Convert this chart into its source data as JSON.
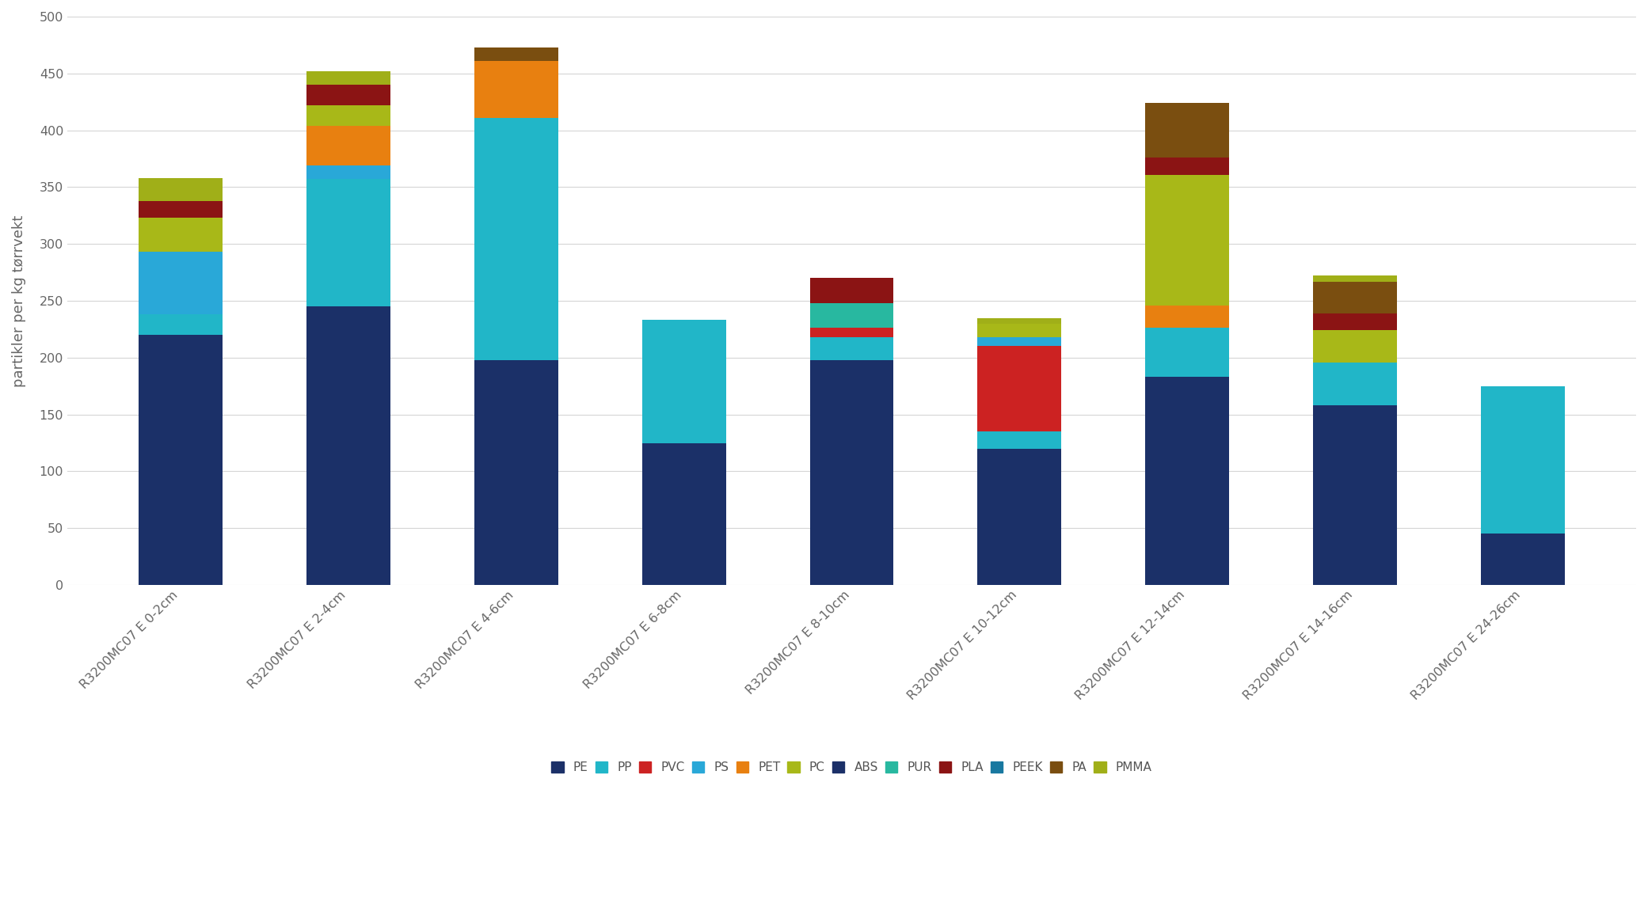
{
  "categories": [
    "R3200MC07 E 0-2cm",
    "R3200MC07 E 2-4cm",
    "R3200MC07 E 4-6cm",
    "R3200MC07 E 6-8cm",
    "R3200MC07 E 8-10cm",
    "R3200MC07 E 10-12cm",
    "R3200MC07 E 12-14cm",
    "R3200MC07 E 14-16cm",
    "R3200MC07 E 24-26cm"
  ],
  "materials": [
    "PE",
    "PP",
    "PVC",
    "PS",
    "PET",
    "PC",
    "ABS",
    "PUR",
    "PLA",
    "PEEK",
    "PA",
    "PMMA"
  ],
  "color_map": {
    "PE": "#1b3068",
    "PP": "#21b6c8",
    "PVC": "#cc2222",
    "PS": "#29a8d8",
    "PET": "#e88010",
    "PC": "#a8b818",
    "ABS": "#1b3068",
    "PUR": "#28b8a0",
    "PLA": "#8b1414",
    "PEEK": "#1878a0",
    "PA": "#7a4e10",
    "PMMA": "#a0af18"
  },
  "values": {
    "PE": [
      220,
      245,
      198,
      125,
      198,
      120,
      183,
      158,
      45
    ],
    "PP": [
      18,
      112,
      213,
      108,
      20,
      15,
      43,
      38,
      130
    ],
    "PVC": [
      0,
      0,
      0,
      0,
      8,
      75,
      0,
      0,
      0
    ],
    "PS": [
      55,
      12,
      0,
      0,
      0,
      8,
      0,
      0,
      0
    ],
    "PET": [
      0,
      35,
      50,
      0,
      0,
      0,
      20,
      0,
      0
    ],
    "PC": [
      30,
      18,
      0,
      0,
      0,
      12,
      115,
      28,
      0
    ],
    "ABS": [
      0,
      0,
      0,
      0,
      0,
      0,
      0,
      0,
      0
    ],
    "PUR": [
      0,
      0,
      0,
      0,
      22,
      0,
      0,
      0,
      0
    ],
    "PLA": [
      15,
      18,
      0,
      0,
      22,
      0,
      15,
      15,
      0
    ],
    "PEEK": [
      0,
      0,
      0,
      0,
      0,
      0,
      0,
      0,
      0
    ],
    "PA": [
      0,
      0,
      12,
      0,
      0,
      0,
      48,
      28,
      0
    ],
    "PMMA": [
      20,
      12,
      0,
      0,
      0,
      5,
      0,
      5,
      0
    ]
  },
  "ylabel": "partikler per kg tørrvekt",
  "ylim": [
    0,
    500
  ],
  "yticks": [
    0,
    50,
    100,
    150,
    200,
    250,
    300,
    350,
    400,
    450,
    500
  ],
  "background_color": "#ffffff",
  "grid_color": "#d5d5d5",
  "bar_width": 0.5
}
